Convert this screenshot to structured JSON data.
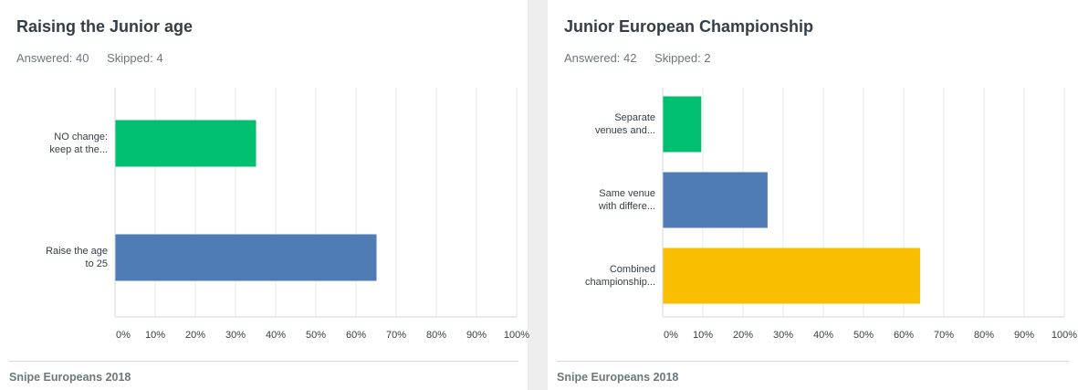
{
  "colors": {
    "green": "#00bf6f",
    "blue": "#507cb6",
    "yellow": "#f9be00",
    "grid": "#e7e9ea",
    "axis": "#d4d7d9"
  },
  "cards": [
    {
      "title": "Raising the Junior age",
      "answered": "Answered: 40",
      "skipped": "Skipped: 4",
      "footer": "Snipe Europeans 2018"
    },
    {
      "title": "Junior European Championship",
      "answered": "Answered: 42",
      "skipped": "Skipped: 2",
      "footer": "Snipe Europeans 2018"
    }
  ],
  "chart_data": [
    {
      "type": "bar",
      "orientation": "horizontal",
      "categories": [
        [
          "NO change:",
          "keep at the..."
        ],
        [
          "Raise the age",
          "to 25"
        ]
      ],
      "values": [
        35,
        65
      ],
      "colors": [
        "#00bf6f",
        "#507cb6"
      ],
      "xlim": [
        0,
        100
      ],
      "xticks": [
        "0%",
        "10%",
        "20%",
        "30%",
        "40%",
        "50%",
        "60%",
        "70%",
        "80%",
        "90%",
        "100%"
      ],
      "grid": true
    },
    {
      "type": "bar",
      "orientation": "horizontal",
      "categories": [
        [
          "Separate",
          "venues and..."
        ],
        [
          "Same venue",
          "with differe..."
        ],
        [
          "Combined",
          "championship..."
        ]
      ],
      "values": [
        9.5,
        26,
        64
      ],
      "colors": [
        "#00bf6f",
        "#507cb6",
        "#f9be00"
      ],
      "xlim": [
        0,
        100
      ],
      "xticks": [
        "0%",
        "10%",
        "20%",
        "30%",
        "40%",
        "50%",
        "60%",
        "70%",
        "80%",
        "90%",
        "100%"
      ],
      "grid": true
    }
  ]
}
